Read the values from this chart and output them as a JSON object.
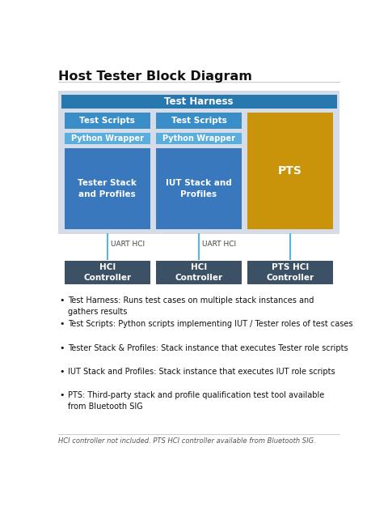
{
  "title": "Host Tester Block Diagram",
  "title_fontsize": 11.5,
  "background_color": "#ffffff",
  "colors": {
    "dark_blue_header": "#2878b0",
    "medium_blue": "#3a8ec8",
    "light_blue_box": "#5aaedd",
    "steel_blue": "#3a78be",
    "dark_slate": "#3d5166",
    "gold": "#c9930a",
    "light_gray_bg": "#d5dce8",
    "connector_line": "#55b8d8",
    "divider_line": "#cccccc"
  },
  "bullet_items": [
    "Test Harness: Runs test cases on multiple stack instances and\ngathers results",
    "Test Scripts: Python scripts implementing IUT / Tester roles of test cases",
    "Tester Stack & Profiles: Stack instance that executes Tester role scripts",
    "IUT Stack and Profiles: Stack instance that executes IUT role scripts",
    "PTS: Third-party stack and profile qualification test tool available\nfrom Bluetooth SIG"
  ],
  "footer_text": "HCI controller not included. PTS HCI controller available from Bluetooth SIG.",
  "bullet_fontsize": 7.0,
  "footer_fontsize": 6.0
}
